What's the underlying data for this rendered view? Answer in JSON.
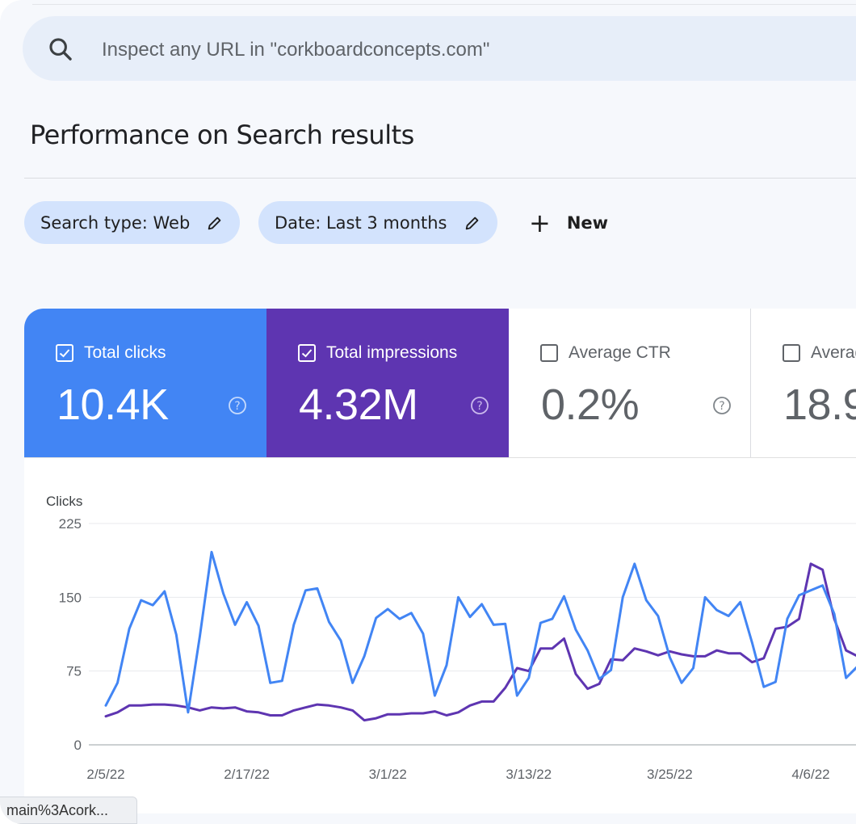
{
  "search": {
    "placeholder": "Inspect any URL in \"corkboardconcepts.com\"",
    "icon": "search-icon"
  },
  "performance": {
    "title": "Performance on Search results"
  },
  "filters": [
    {
      "label": "Search type: Web",
      "icon": "pencil-icon"
    },
    {
      "label": "Date: Last 3 months",
      "icon": "pencil-icon"
    }
  ],
  "new_filter": {
    "label": "New",
    "icon": "plus-icon"
  },
  "metrics": [
    {
      "label": "Total clicks",
      "value": "10.4K",
      "checked": true,
      "color": "#4285f4"
    },
    {
      "label": "Total impressions",
      "value": "4.32M",
      "checked": true,
      "color": "#5e35b1"
    },
    {
      "label": "Average CTR",
      "value": "0.2%",
      "checked": false
    },
    {
      "label": "Averag",
      "value": "18.9",
      "checked": false
    }
  ],
  "status_bar": {
    "text": "main%3Acork..."
  },
  "chart_data": {
    "type": "line",
    "ylabel": "Clicks",
    "yticks": [
      "225",
      "150",
      "75",
      "0"
    ],
    "ylim": [
      0,
      225
    ],
    "xticks": [
      "2/5/22",
      "2/17/22",
      "3/1/22",
      "3/13/22",
      "3/25/22",
      "4/6/22"
    ],
    "x_start": "2022-02-05",
    "grid": true,
    "series": [
      {
        "color": "#4285f4",
        "values": [
          40,
          63,
          118,
          147,
          142,
          156,
          112,
          33,
          110,
          196,
          154,
          122,
          145,
          121,
          63,
          65,
          122,
          157,
          159,
          125,
          106,
          63,
          90,
          129,
          138,
          128,
          134,
          113,
          50,
          81,
          150,
          130,
          143,
          122,
          123,
          50,
          68,
          124,
          128,
          151,
          117,
          96,
          67,
          76,
          150,
          184,
          147,
          131,
          89,
          63,
          78,
          150,
          137,
          131,
          145,
          104,
          59,
          64,
          128,
          152,
          157,
          162,
          133,
          68,
          80
        ]
      },
      {
        "color": "#5e35b1",
        "values": [
          29,
          33,
          40,
          40,
          41,
          41,
          40,
          38,
          35,
          38,
          37,
          38,
          34,
          33,
          30,
          30,
          35,
          38,
          41,
          40,
          38,
          35,
          25,
          27,
          31,
          31,
          32,
          32,
          34,
          30,
          33,
          40,
          44,
          44,
          58,
          78,
          75,
          98,
          98,
          108,
          72,
          57,
          62,
          87,
          86,
          98,
          95,
          91,
          95,
          92,
          90,
          90,
          96,
          93,
          93,
          84,
          88,
          118,
          120,
          128,
          184,
          178,
          128,
          96,
          90
        ]
      }
    ]
  }
}
